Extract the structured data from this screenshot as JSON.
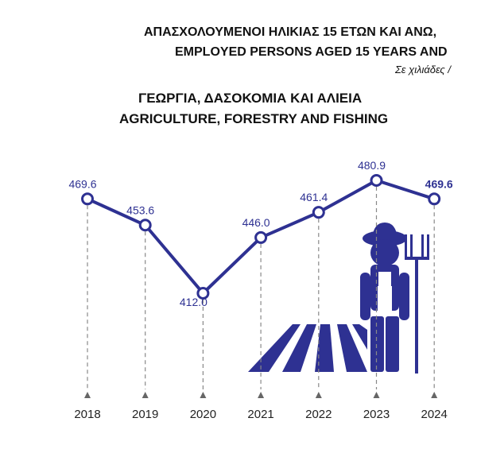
{
  "header": {
    "title_gr": "ΑΠΑΣΧΟΛΟΥΜΕΝΟΙ ΗΛΙΚΙΑΣ 15 ΕΤΩΝ ΚΑΙ ΑΝΩ,",
    "title_en": "EMPLOYED PERSONS AGED 15 YEARS AND",
    "unit": "Σε χιλιάδες /"
  },
  "chart_data": {
    "type": "line",
    "title": "ΓΕΩΡΓΙΑ, ΔΑΣΟΚΟΜΙΑ ΚΑΙ ΑΛΙΕΙΑ",
    "subtitle": "AGRICULTURE, FORESTRY AND FISHING",
    "categories": [
      "2018",
      "2019",
      "2020",
      "2021",
      "2022",
      "2023",
      "2024"
    ],
    "values": [
      469.6,
      453.6,
      412.0,
      446.0,
      461.4,
      480.9,
      469.6
    ],
    "labels": [
      "469.6",
      "453.6",
      "412.0",
      "446.0",
      "461.4",
      "480.9",
      "469.6"
    ],
    "xlabel": "",
    "ylabel": "",
    "grid": false,
    "color": "#2e3192"
  }
}
